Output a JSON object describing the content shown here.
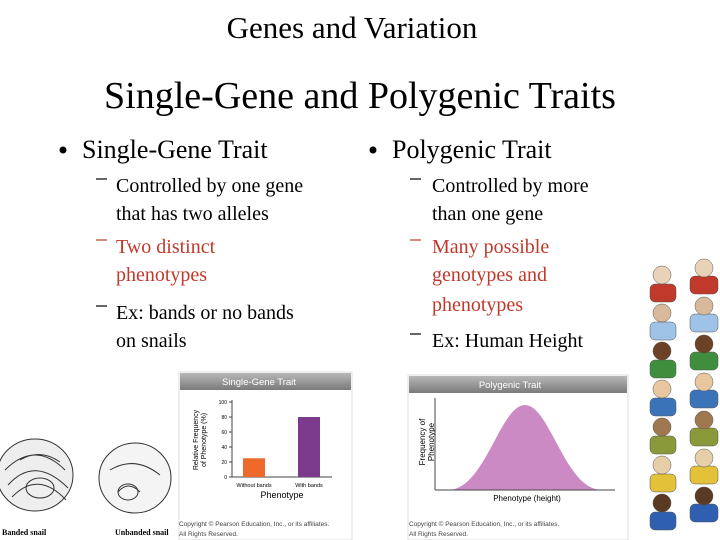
{
  "title": "Genes and Variation",
  "subtitle": "Single-Gene and Polygenic Traits",
  "columns": [
    {
      "heading": "Single-Gene Trait",
      "items": [
        {
          "lines": [
            "Controlled by one gene",
            "that has two alleles"
          ]
        },
        {
          "lines": [
            "Two distinct",
            "phenotypes"
          ]
        },
        {
          "lines": [
            "Ex: bands or no bands",
            "on snails"
          ]
        }
      ]
    },
    {
      "heading": "Polygenic Trait",
      "items": [
        {
          "lines": [
            "Controlled by more",
            "than one gene"
          ]
        },
        {
          "lines": [
            "Many possible",
            "genotypes and",
            "phenotypes"
          ]
        },
        {
          "lines": [
            "Ex:  Human Height"
          ]
        }
      ]
    }
  ],
  "snail_labels": [
    "Banded snail",
    "Unbanded snail"
  ],
  "chart_data": {
    "type": "bar",
    "title": "Single-Gene Trait",
    "y_label": [
      "Relative Frequency",
      "of Phenotype (%)"
    ],
    "x_label": "Phenotype",
    "categories": [
      "Without bands",
      "With bands"
    ],
    "values": [
      25,
      80
    ],
    "colors": [
      "#ee6a2a",
      "#7b3a8c"
    ],
    "ylim": [
      0,
      100
    ],
    "yticks": [
      0,
      20,
      40,
      60,
      80,
      100
    ],
    "copyright": [
      "Copyright © Pearson Education, Inc., or its affiliates.",
      "All Rights Reserved."
    ]
  },
  "polygenic_chart": {
    "title": "Polygenic Trait",
    "y_label": [
      "Frequency of",
      "Phenotype"
    ],
    "x_label": "Phenotype (height)",
    "copyright": [
      "Copyright © Pearson Education, Inc., or its affiliates.",
      "All Rights Reserved."
    ]
  }
}
